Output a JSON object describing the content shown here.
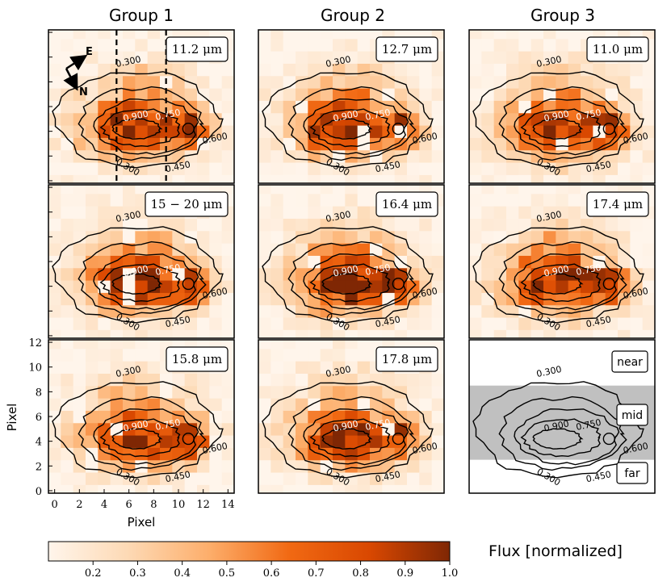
{
  "chart_data": {
    "type": "heatmap",
    "groups": [
      "Group 1",
      "Group 2",
      "Group 3"
    ],
    "panels": [
      {
        "group": 0,
        "label": "11.2 μm",
        "type": "heatmap",
        "seed": 3
      },
      {
        "group": 1,
        "label": "12.7 μm",
        "type": "heatmap",
        "seed": 7
      },
      {
        "group": 2,
        "label": "11.0 μm",
        "type": "heatmap",
        "seed": 11
      },
      {
        "group": 0,
        "label": "15 − 20 μm",
        "type": "heatmap",
        "seed": 5
      },
      {
        "group": 1,
        "label": "16.4 μm",
        "type": "heatmap",
        "seed": 9
      },
      {
        "group": 2,
        "label": "17.4 μm",
        "type": "heatmap",
        "seed": 13
      },
      {
        "group": 0,
        "label": "15.8 μm",
        "type": "heatmap",
        "seed": 17
      },
      {
        "group": 1,
        "label": "17.8 μm",
        "type": "heatmap",
        "seed": 19
      },
      {
        "group": 2,
        "label": "",
        "type": "regions",
        "seed": 0
      }
    ],
    "regions": {
      "near": "near",
      "mid": "mid",
      "far": "far",
      "mid_range": [
        2.5,
        8.5
      ]
    },
    "contour_levels": [
      0.3,
      0.45,
      0.6,
      0.75,
      0.9
    ],
    "contour_labels": [
      "0.300",
      "0.450",
      "0.600",
      "0.750",
      "0.900"
    ],
    "xlabel": "Pixel",
    "ylabel": "Pixel",
    "x_ticks": [
      "0",
      "2",
      "4",
      "6",
      "8",
      "10",
      "12",
      "14"
    ],
    "y_ticks": [
      "0",
      "2",
      "4",
      "6",
      "8",
      "10",
      "12"
    ],
    "xlim": [
      -0.5,
      14.5
    ],
    "ylim": [
      -0.2,
      12.2
    ],
    "dashed_columns": [
      5,
      9
    ],
    "compass": {
      "east": "E",
      "north": "N"
    },
    "colorbar": {
      "label": "Flux [normalized]",
      "range": [
        0.1,
        1.0
      ],
      "ticks": [
        "0.2",
        "0.3",
        "0.4",
        "0.5",
        "0.6",
        "0.7",
        "0.8",
        "0.9",
        "1.0"
      ],
      "low_color": "#fff5eb",
      "high_color": "#7f2704"
    }
  }
}
